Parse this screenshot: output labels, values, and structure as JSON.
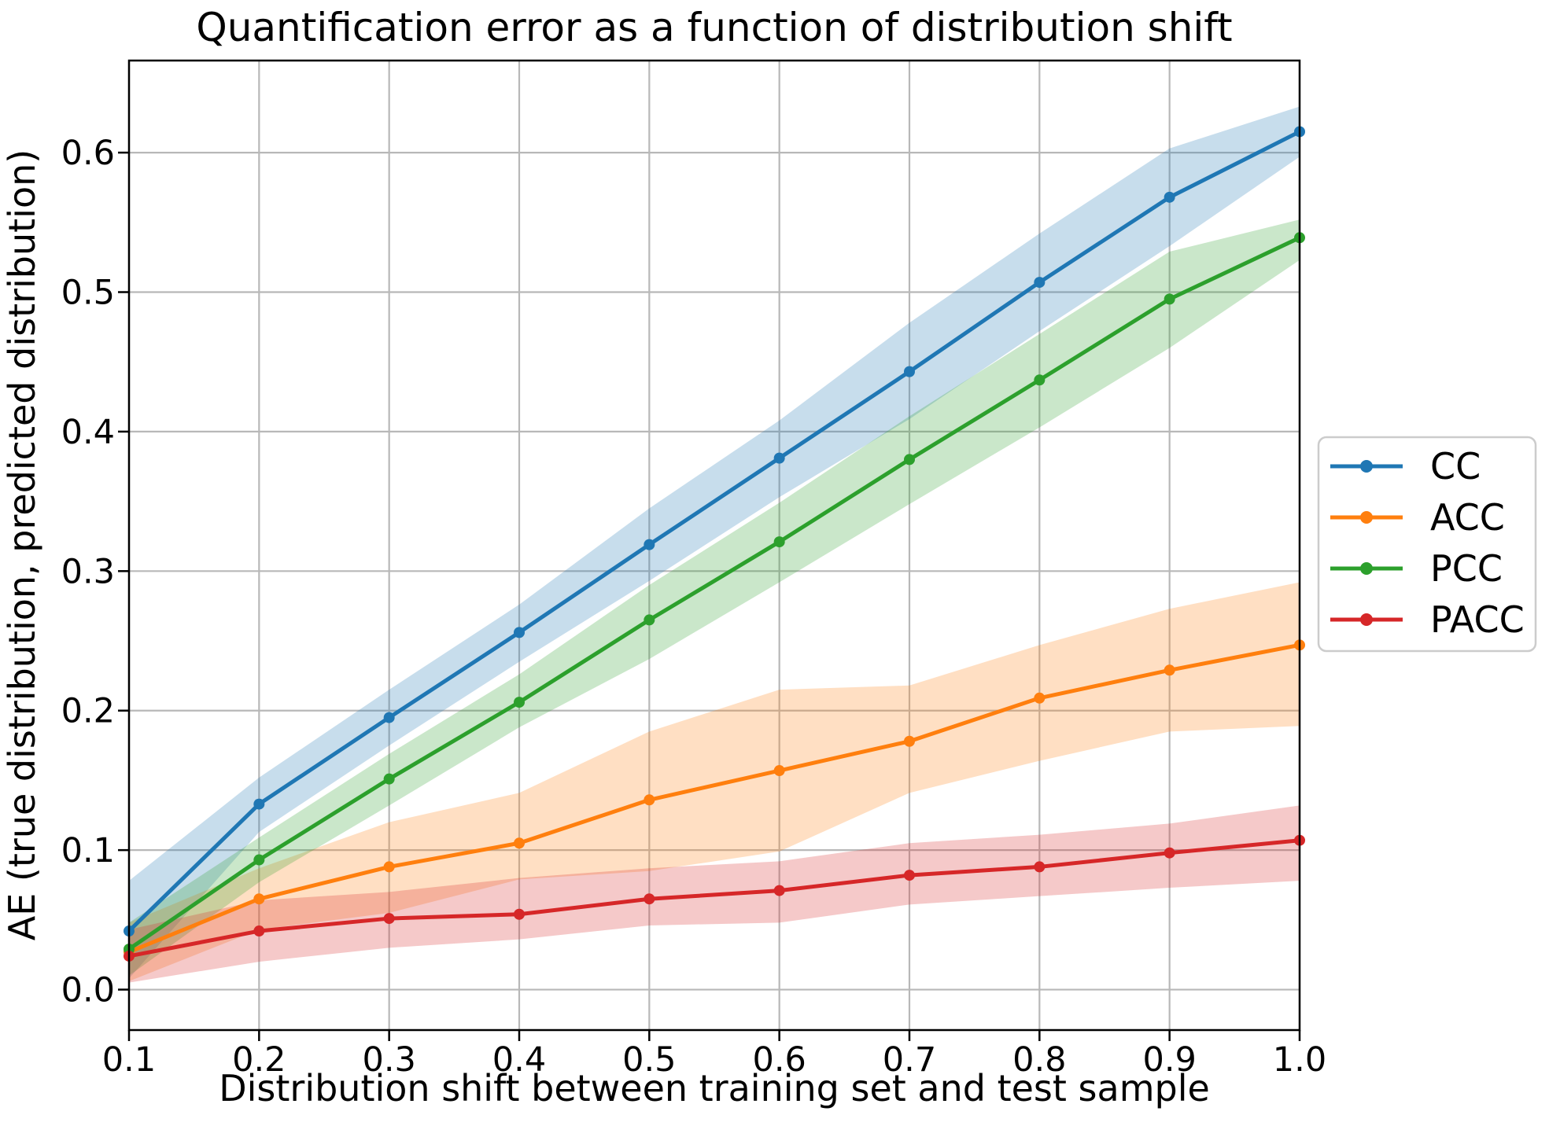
{
  "figure": {
    "title": "Quantification error as a function of distribution shift",
    "xlabel": "Distribution shift between training set and test sample",
    "ylabel": "AE (true distribution, predicted distribution)"
  },
  "chart_data": {
    "type": "line",
    "title": "Quantification error as a function of distribution shift",
    "xlabel": "Distribution shift between training set and test sample",
    "ylabel": "AE (true distribution, predicted distribution)",
    "grid": true,
    "grid_color": "#b8b8b8",
    "background": "#ffffff",
    "legend_position": "outside right, vertically centered",
    "band_opacity": 0.25,
    "xlim": [
      0.1,
      1.0
    ],
    "ylim": [
      -0.029,
      0.666
    ],
    "x": [
      0.1,
      0.2,
      0.3,
      0.4,
      0.5,
      0.6,
      0.7,
      0.8,
      0.9,
      1.0
    ],
    "x_tick_labels": [
      "0.1",
      "0.2",
      "0.3",
      "0.4",
      "0.5",
      "0.6",
      "0.7",
      "0.8",
      "0.9",
      "1.0"
    ],
    "y_ticks": [
      0.0,
      0.1,
      0.2,
      0.3,
      0.4,
      0.5,
      0.6
    ],
    "y_tick_labels": [
      "0.0",
      "0.1",
      "0.2",
      "0.3",
      "0.4",
      "0.5",
      "0.6"
    ],
    "series": [
      {
        "name": "CC",
        "color": "#1f77b4",
        "values": [
          0.042,
          0.133,
          0.195,
          0.256,
          0.319,
          0.381,
          0.443,
          0.507,
          0.568,
          0.615
        ],
        "band_lower": [
          0.008,
          0.113,
          0.175,
          0.235,
          0.293,
          0.353,
          0.409,
          0.472,
          0.533,
          0.597
        ],
        "band_upper": [
          0.078,
          0.152,
          0.215,
          0.276,
          0.345,
          0.408,
          0.478,
          0.542,
          0.603,
          0.633
        ]
      },
      {
        "name": "ACC",
        "color": "#ff7f0e",
        "values": [
          0.027,
          0.065,
          0.088,
          0.105,
          0.136,
          0.157,
          0.178,
          0.209,
          0.229,
          0.247
        ],
        "band_lower": [
          0.006,
          0.043,
          0.055,
          0.079,
          0.085,
          0.099,
          0.141,
          0.164,
          0.185,
          0.189
        ],
        "band_upper": [
          0.048,
          0.087,
          0.12,
          0.141,
          0.185,
          0.215,
          0.218,
          0.247,
          0.273,
          0.292
        ]
      },
      {
        "name": "PCC",
        "color": "#2ca02c",
        "values": [
          0.029,
          0.093,
          0.151,
          0.206,
          0.265,
          0.321,
          0.38,
          0.437,
          0.495,
          0.539
        ],
        "band_lower": [
          0.01,
          0.077,
          0.132,
          0.188,
          0.237,
          0.292,
          0.348,
          0.403,
          0.46,
          0.523
        ],
        "band_upper": [
          0.048,
          0.109,
          0.169,
          0.226,
          0.29,
          0.349,
          0.411,
          0.47,
          0.529,
          0.552
        ]
      },
      {
        "name": "PACC",
        "color": "#d62728",
        "values": [
          0.024,
          0.042,
          0.051,
          0.054,
          0.065,
          0.071,
          0.082,
          0.088,
          0.098,
          0.107
        ],
        "band_lower": [
          0.005,
          0.02,
          0.03,
          0.036,
          0.046,
          0.048,
          0.061,
          0.067,
          0.073,
          0.078
        ],
        "band_upper": [
          0.043,
          0.064,
          0.07,
          0.08,
          0.087,
          0.092,
          0.105,
          0.111,
          0.119,
          0.132
        ]
      }
    ]
  }
}
